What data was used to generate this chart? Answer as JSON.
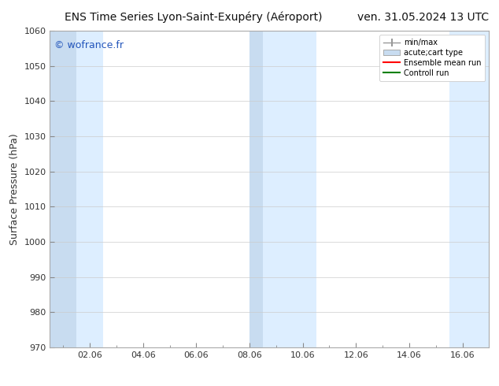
{
  "title_left": "ENS Time Series Lyon-Saint-Exupéry (Aéroport)",
  "title_right": "ven. 31.05.2024 13 UTC",
  "ylabel": "Surface Pressure (hPa)",
  "ylim": [
    970,
    1060
  ],
  "yticks": [
    970,
    980,
    990,
    1000,
    1010,
    1020,
    1030,
    1040,
    1050,
    1060
  ],
  "xtick_labels": [
    "02.06",
    "04.06",
    "06.06",
    "08.06",
    "10.06",
    "12.06",
    "14.06",
    "16.06"
  ],
  "xtick_positions": [
    2,
    4,
    6,
    8,
    10,
    12,
    14,
    16
  ],
  "xlim": [
    0.5,
    17.0
  ],
  "watermark": "© wofrance.fr",
  "watermark_color": "#2255bb",
  "background_color": "#ffffff",
  "plot_bg_color": "#ffffff",
  "shaded_color_light": "#ddeeff",
  "shaded_color_dark": "#c8dcf0",
  "shaded_pairs": [
    [
      0.5,
      1.5,
      "#c8dcf0"
    ],
    [
      1.5,
      2.5,
      "#ddeeff"
    ],
    [
      8.0,
      8.5,
      "#c8dcf0"
    ],
    [
      8.5,
      10.5,
      "#ddeeff"
    ],
    [
      15.5,
      17.0,
      "#ddeeff"
    ]
  ],
  "legend_labels": [
    "min/max",
    "acute;cart type",
    "Ensemble mean run",
    "Controll run"
  ],
  "legend_line_colors": [
    "#999999",
    "#c8dcf0",
    "#ff0000",
    "#008000"
  ],
  "title_fontsize": 10,
  "ylabel_fontsize": 9,
  "tick_fontsize": 8,
  "watermark_fontsize": 9
}
